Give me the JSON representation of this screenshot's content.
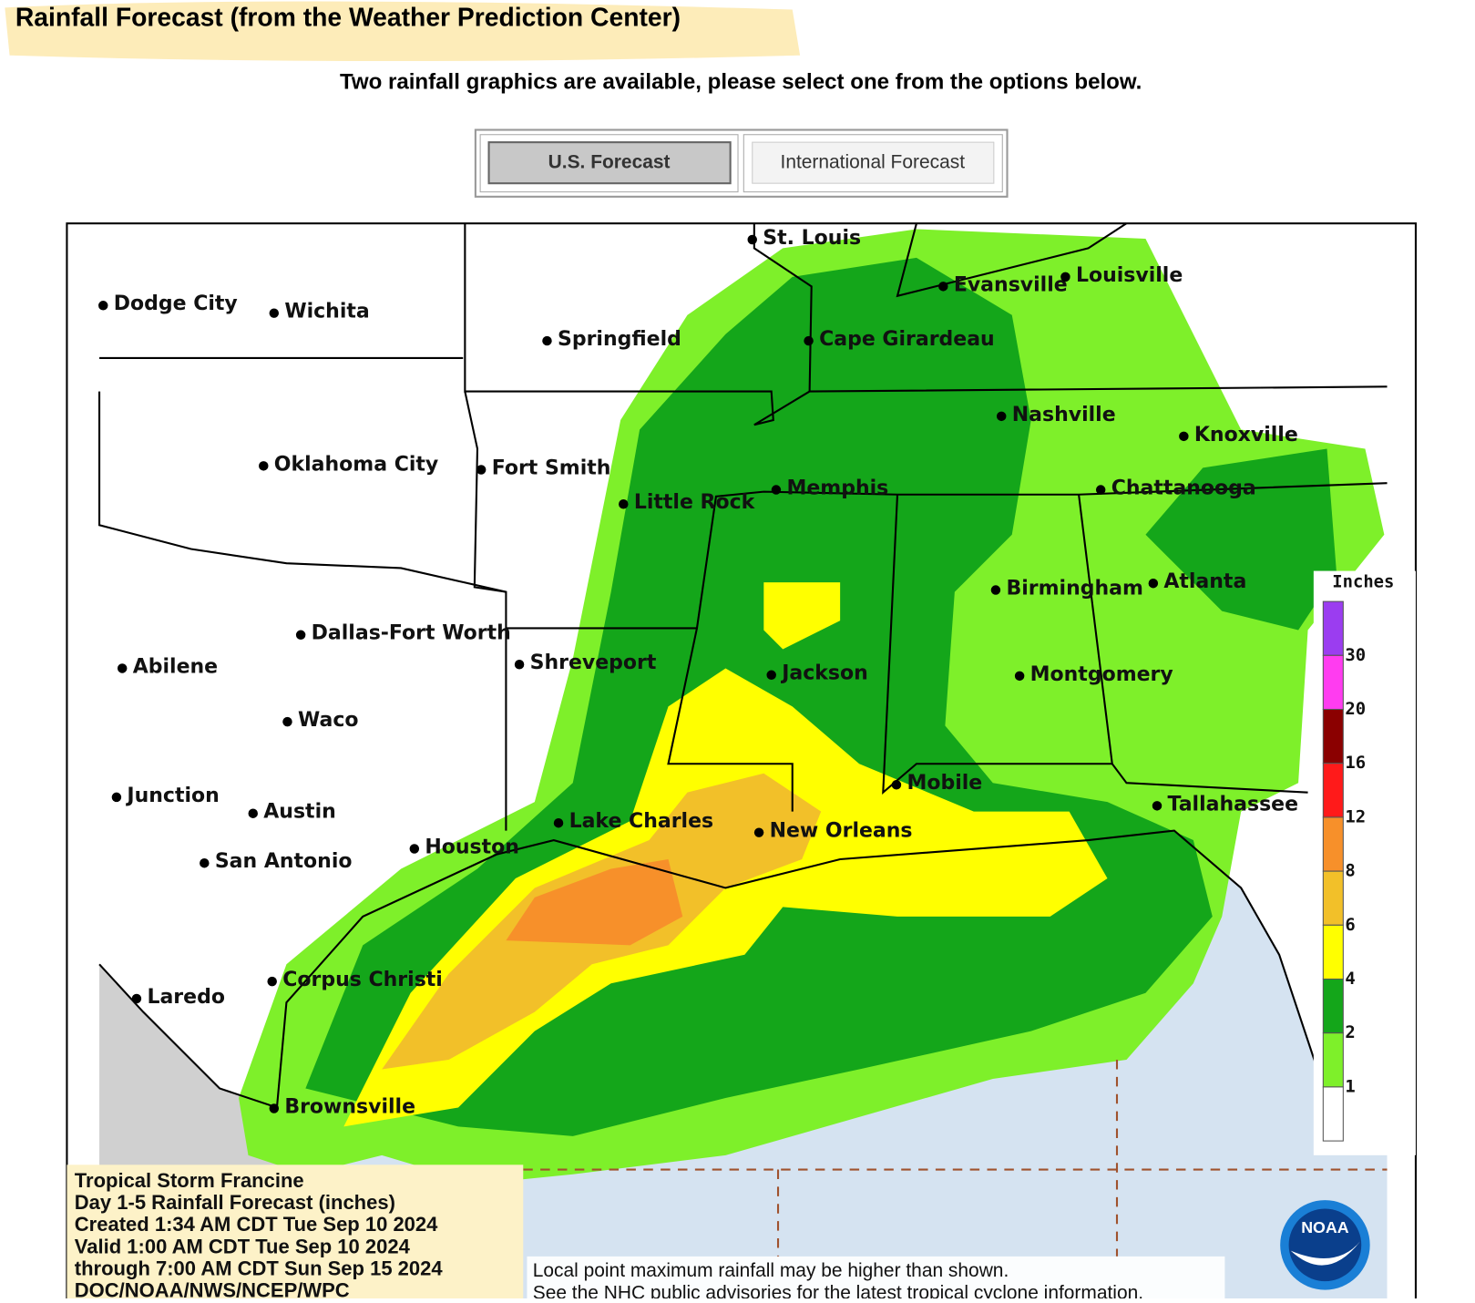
{
  "header": {
    "title": "Rainfall Forecast (from the Weather Prediction Center)",
    "subtitle": "Two rainfall graphics are available, please select one from the options below."
  },
  "tabs": [
    "U.S. Forecast",
    "International Forecast"
  ],
  "map": {
    "cities": [
      "St. Louis",
      "Evansville",
      "Louisville",
      "Dodge City",
      "Wichita",
      "Springfield",
      "Cape Girardeau",
      "Nashville",
      "Knoxville",
      "Oklahoma City",
      "Fort Smith",
      "Memphis",
      "Little Rock",
      "Chattanooga",
      "Birmingham",
      "Atlanta",
      "Dallas-Fort Worth",
      "Shreveport",
      "Jackson",
      "Montgomery",
      "Abilene",
      "Waco",
      "Mobile",
      "Tallahassee",
      "Junction",
      "Austin",
      "Lake Charles",
      "New Orleans",
      "Houston",
      "San Antonio",
      "Corpus Christi",
      "Laredo",
      "Brownsville"
    ],
    "legend": {
      "title": "Inches",
      "ticks": [
        "30",
        "20",
        "16",
        "12",
        "8",
        "6",
        "4",
        "2",
        "1"
      ]
    },
    "info": [
      "Tropical Storm Francine",
      "Day 1-5 Rainfall Forecast (inches)",
      "Created 1:34 AM CDT Tue Sep 10 2024",
      "Valid 1:00 AM CDT Tue Sep 10 2024",
      "through 7:00 AM CDT Sun Sep 15 2024",
      "DOC/NOAA/NWS/NCEP/WPC"
    ],
    "note": [
      "Local point maximum rainfall may be higher than shown.",
      "See the NHC public advisories for the latest tropical cyclone information."
    ],
    "logo": "NOAA"
  }
}
